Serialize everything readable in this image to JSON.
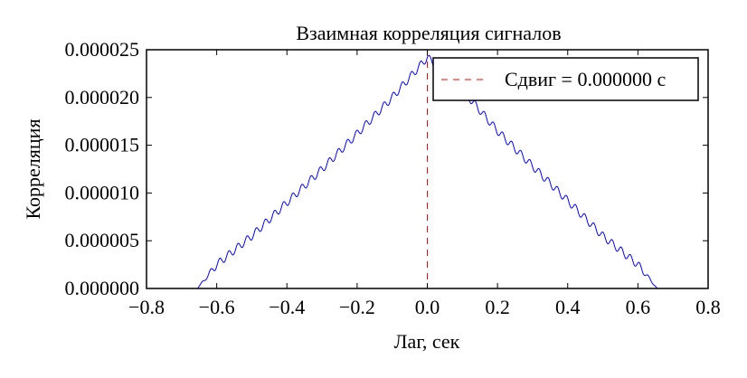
{
  "chart_data": {
    "type": "line",
    "title": "Взаимная корреляция сигналов",
    "xlabel": "Лаг, сек",
    "ylabel": "Корреляция",
    "xlim": [
      -0.8,
      0.8
    ],
    "ylim": [
      0,
      2.5e-05
    ],
    "x_ticks": [
      "−0.8",
      "−0.6",
      "−0.4",
      "−0.2",
      "0.0",
      "0.2",
      "0.4",
      "0.6",
      "0.8"
    ],
    "y_ticks": [
      "0.000000",
      "0.000005",
      "0.000010",
      "0.000015",
      "0.000020",
      "0.000025"
    ],
    "grid": false,
    "legend_position": "top-right",
    "series": [
      {
        "name": "",
        "color": "#0000ff",
        "style": "solid",
        "description_points": {
          "x": [
            -0.655,
            -0.6,
            -0.5,
            -0.4,
            -0.3,
            -0.2,
            -0.1,
            0.0,
            0.1,
            0.2,
            0.3,
            0.4,
            0.5,
            0.6,
            0.655
          ],
          "y": [
            0.0,
            2.5e-06,
            5.5e-06,
            9e-06,
            1.25e-05,
            1.62e-05,
            2e-05,
            2.42e-05,
            2.08e-05,
            1.65e-05,
            1.28e-05,
            9.2e-06,
            5.5e-06,
            2.5e-06,
            0.0
          ]
        },
        "ripple_period": 0.026,
        "ripple_amplitude": 4e-07
      },
      {
        "name": "Сдвиг = 0.000000 с",
        "color": "#ff0000",
        "style": "dashed",
        "vertical_x": 0.0
      }
    ],
    "legend_entries": [
      {
        "label": "Сдвиг = 0.000000 с",
        "color": "#ff0000",
        "style": "dashed"
      }
    ]
  }
}
